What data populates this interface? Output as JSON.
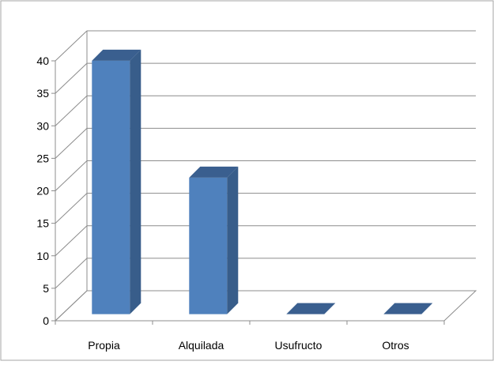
{
  "chart_data": {
    "type": "bar",
    "title": "",
    "xlabel": "",
    "ylabel": "",
    "categories": [
      "Propia",
      "Alquilada",
      "Usufructo",
      "Otros"
    ],
    "values": [
      39,
      21,
      0,
      0
    ],
    "ylim": [
      0,
      40
    ],
    "yticks": [
      0,
      5,
      10,
      15,
      20,
      25,
      30,
      35,
      40
    ],
    "grid": true,
    "legend": "none",
    "style": "3d-column",
    "colors": {
      "bar_front": "#4f81bd",
      "bar_side": "#385d8a",
      "bar_top": "#3a5f8f",
      "gridline": "#8c8c8c",
      "text": "#000000",
      "border": "#a6a6a6"
    }
  }
}
